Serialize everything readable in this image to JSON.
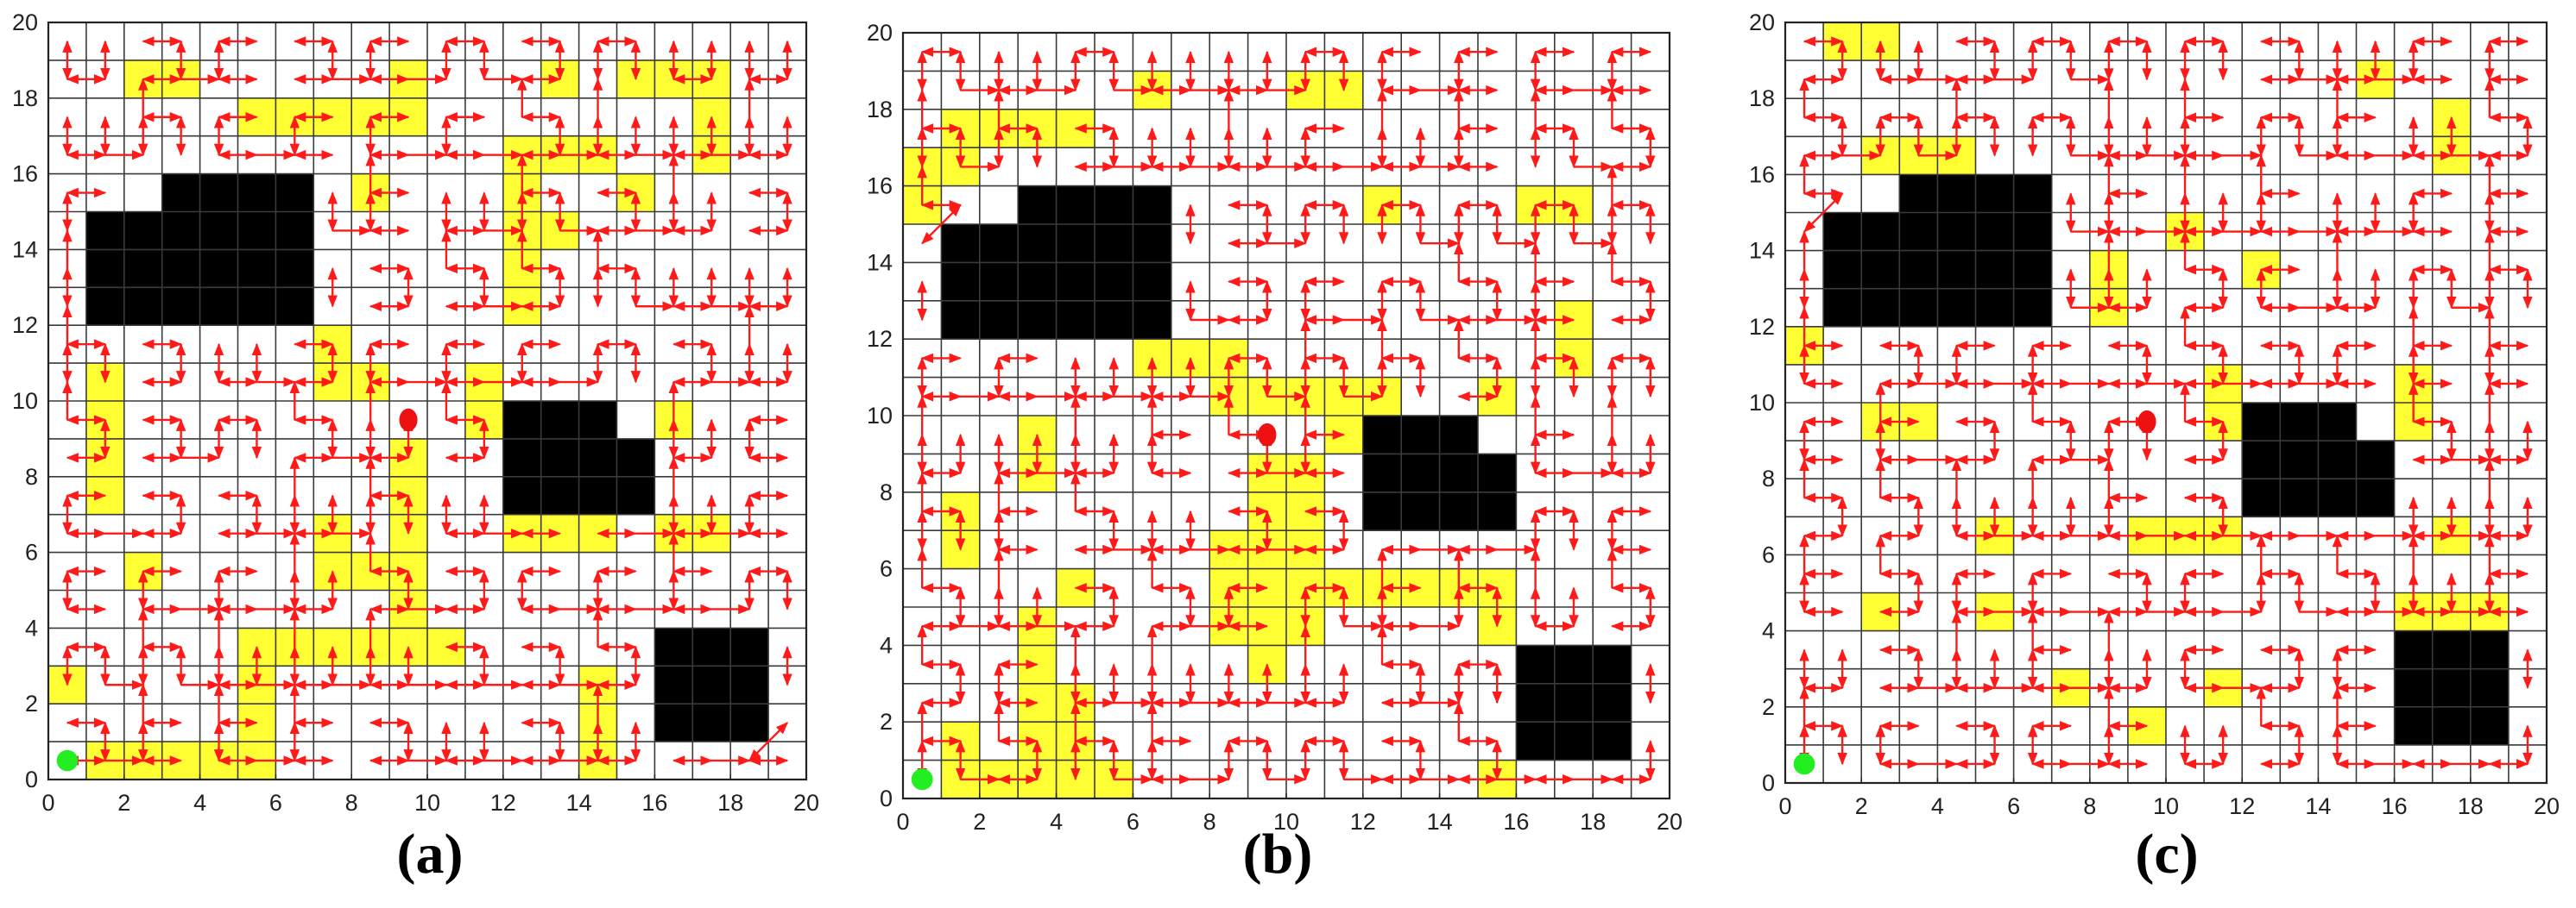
{
  "panels": [
    {
      "caption": "(a)",
      "x_ticks": [
        "0",
        "2",
        "4",
        "6",
        "8",
        "10",
        "12",
        "14",
        "16",
        "18",
        "20"
      ],
      "y_ticks": [
        "0",
        "2",
        "4",
        "6",
        "8",
        "10",
        "12",
        "14",
        "16",
        "18",
        "20"
      ],
      "start_point": [
        0.5,
        0.5
      ],
      "goal_point": [
        9.5,
        9.5
      ],
      "obstacles": [
        [
          [
            1,
            12
          ],
          [
            7,
            12
          ],
          [
            7,
            16
          ],
          [
            3,
            16
          ],
          [
            3,
            15
          ],
          [
            1,
            15
          ]
        ],
        [
          [
            12,
            7
          ],
          [
            16,
            7
          ],
          [
            16,
            9
          ],
          [
            15,
            9
          ],
          [
            15,
            10
          ],
          [
            12,
            10
          ]
        ],
        [
          [
            16,
            1
          ],
          [
            19,
            1
          ],
          [
            19,
            4
          ],
          [
            16,
            4
          ]
        ]
      ],
      "highlighted_cells": [
        [
          1,
          0
        ],
        [
          2,
          0
        ],
        [
          3,
          0
        ],
        [
          4,
          0
        ],
        [
          5,
          0
        ],
        [
          5,
          1
        ],
        [
          5,
          2
        ],
        [
          5,
          3
        ],
        [
          6,
          3
        ],
        [
          7,
          3
        ],
        [
          8,
          3
        ],
        [
          9,
          3
        ],
        [
          10,
          3
        ],
        [
          9,
          4
        ],
        [
          9,
          5
        ],
        [
          9,
          6
        ],
        [
          9,
          7
        ],
        [
          9,
          8
        ],
        [
          7,
          5
        ],
        [
          8,
          5
        ],
        [
          7,
          6
        ],
        [
          1,
          7
        ],
        [
          1,
          8
        ],
        [
          1,
          9
        ],
        [
          1,
          10
        ],
        [
          0,
          2
        ],
        [
          2,
          5
        ],
        [
          7,
          10
        ],
        [
          7,
          11
        ],
        [
          8,
          10
        ],
        [
          11,
          9
        ],
        [
          11,
          10
        ],
        [
          12,
          6
        ],
        [
          13,
          6
        ],
        [
          14,
          6
        ],
        [
          16,
          6
        ],
        [
          17,
          6
        ],
        [
          16,
          9
        ],
        [
          14,
          0
        ],
        [
          14,
          1
        ],
        [
          14,
          2
        ],
        [
          2,
          18
        ],
        [
          3,
          18
        ],
        [
          5,
          17
        ],
        [
          6,
          17
        ],
        [
          7,
          17
        ],
        [
          8,
          17
        ],
        [
          9,
          17
        ],
        [
          9,
          18
        ],
        [
          8,
          15
        ],
        [
          12,
          12
        ],
        [
          12,
          13
        ],
        [
          12,
          14
        ],
        [
          12,
          15
        ],
        [
          12,
          16
        ],
        [
          13,
          14
        ],
        [
          13,
          16
        ],
        [
          14,
          16
        ],
        [
          15,
          15
        ],
        [
          13,
          18
        ],
        [
          15,
          18
        ],
        [
          16,
          18
        ],
        [
          17,
          18
        ],
        [
          17,
          17
        ],
        [
          17,
          16
        ]
      ]
    },
    {
      "caption": "(b)",
      "x_ticks": [
        "0",
        "2",
        "4",
        "6",
        "8",
        "10",
        "12",
        "14",
        "16",
        "18",
        "20"
      ],
      "y_ticks": [
        "0",
        "2",
        "4",
        "6",
        "8",
        "10",
        "12",
        "14",
        "16",
        "18",
        "20"
      ],
      "start_point": [
        0.5,
        0.5
      ],
      "goal_point": [
        9.5,
        9.5
      ],
      "obstacles": [
        [
          [
            1,
            12
          ],
          [
            7,
            12
          ],
          [
            7,
            16
          ],
          [
            3,
            16
          ],
          [
            3,
            15
          ],
          [
            1,
            15
          ]
        ],
        [
          [
            12,
            7
          ],
          [
            16,
            7
          ],
          [
            16,
            9
          ],
          [
            15,
            9
          ],
          [
            15,
            10
          ],
          [
            12,
            10
          ]
        ],
        [
          [
            16,
            1
          ],
          [
            19,
            1
          ],
          [
            19,
            4
          ],
          [
            16,
            4
          ]
        ]
      ],
      "highlighted_cells": [
        [
          1,
          0
        ],
        [
          2,
          0
        ],
        [
          3,
          0
        ],
        [
          4,
          0
        ],
        [
          5,
          0
        ],
        [
          1,
          1
        ],
        [
          3,
          1
        ],
        [
          4,
          1
        ],
        [
          3,
          2
        ],
        [
          4,
          2
        ],
        [
          3,
          3
        ],
        [
          3,
          4
        ],
        [
          4,
          5
        ],
        [
          1,
          6
        ],
        [
          1,
          7
        ],
        [
          3,
          8
        ],
        [
          3,
          9
        ],
        [
          0,
          15
        ],
        [
          0,
          16
        ],
        [
          1,
          16
        ],
        [
          1,
          17
        ],
        [
          2,
          17
        ],
        [
          3,
          17
        ],
        [
          4,
          17
        ],
        [
          6,
          11
        ],
        [
          7,
          11
        ],
        [
          8,
          11
        ],
        [
          8,
          10
        ],
        [
          9,
          10
        ],
        [
          10,
          10
        ],
        [
          11,
          10
        ],
        [
          11,
          9
        ],
        [
          12,
          10
        ],
        [
          9,
          3
        ],
        [
          9,
          4
        ],
        [
          9,
          5
        ],
        [
          9,
          6
        ],
        [
          9,
          7
        ],
        [
          9,
          8
        ],
        [
          10,
          4
        ],
        [
          10,
          5
        ],
        [
          10,
          6
        ],
        [
          10,
          7
        ],
        [
          10,
          8
        ],
        [
          8,
          4
        ],
        [
          8,
          5
        ],
        [
          8,
          6
        ],
        [
          11,
          5
        ],
        [
          12,
          5
        ],
        [
          13,
          5
        ],
        [
          14,
          5
        ],
        [
          15,
          5
        ],
        [
          15,
          4
        ],
        [
          15,
          0
        ],
        [
          15,
          10
        ],
        [
          6,
          18
        ],
        [
          10,
          18
        ],
        [
          11,
          18
        ],
        [
          12,
          15
        ],
        [
          16,
          15
        ],
        [
          17,
          15
        ],
        [
          17,
          11
        ],
        [
          17,
          12
        ]
      ]
    },
    {
      "caption": "(c)",
      "x_ticks": [
        "0",
        "2",
        "4",
        "6",
        "8",
        "10",
        "12",
        "14",
        "16",
        "18",
        "20"
      ],
      "y_ticks": [
        "0",
        "2",
        "4",
        "6",
        "8",
        "10",
        "12",
        "14",
        "16",
        "18",
        "20"
      ],
      "start_point": [
        0.5,
        0.5
      ],
      "goal_point": [
        9.5,
        9.5
      ],
      "obstacles": [
        [
          [
            1,
            12
          ],
          [
            7,
            12
          ],
          [
            7,
            16
          ],
          [
            3,
            16
          ],
          [
            3,
            15
          ],
          [
            1,
            15
          ]
        ],
        [
          [
            12,
            7
          ],
          [
            16,
            7
          ],
          [
            16,
            9
          ],
          [
            15,
            9
          ],
          [
            15,
            10
          ],
          [
            12,
            10
          ]
        ],
        [
          [
            16,
            1
          ],
          [
            19,
            1
          ],
          [
            19,
            4
          ],
          [
            16,
            4
          ]
        ]
      ],
      "highlighted_cells": [
        [
          1,
          19
        ],
        [
          2,
          19
        ],
        [
          2,
          16
        ],
        [
          3,
          16
        ],
        [
          4,
          16
        ],
        [
          15,
          18
        ],
        [
          17,
          16
        ],
        [
          17,
          17
        ],
        [
          10,
          14
        ],
        [
          8,
          12
        ],
        [
          8,
          13
        ],
        [
          12,
          13
        ],
        [
          0,
          11
        ],
        [
          2,
          9
        ],
        [
          3,
          9
        ],
        [
          11,
          9
        ],
        [
          11,
          10
        ],
        [
          16,
          9
        ],
        [
          16,
          10
        ],
        [
          5,
          6
        ],
        [
          9,
          6
        ],
        [
          10,
          6
        ],
        [
          11,
          6
        ],
        [
          17,
          6
        ],
        [
          2,
          4
        ],
        [
          5,
          4
        ],
        [
          16,
          4
        ],
        [
          17,
          4
        ],
        [
          18,
          4
        ],
        [
          7,
          2
        ],
        [
          9,
          1
        ],
        [
          11,
          2
        ]
      ]
    }
  ]
}
